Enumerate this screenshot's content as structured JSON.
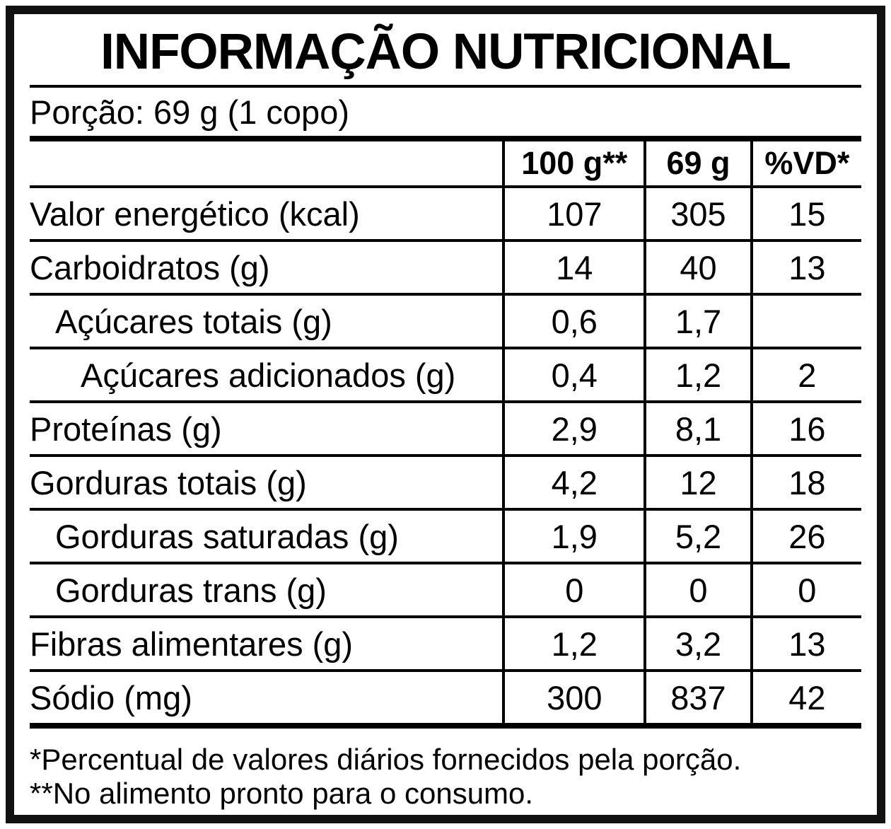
{
  "title": "INFORMAÇÃO NUTRICIONAL",
  "portion": "Porção: 69 g (1 copo)",
  "table": {
    "columns": [
      "",
      "100 g**",
      "69 g",
      "%VD*"
    ],
    "rows": [
      {
        "label": "Valor energético (kcal)",
        "indent": 0,
        "per100g": "107",
        "per_portion": "305",
        "percent_vd": "15"
      },
      {
        "label": "Carboidratos (g)",
        "indent": 0,
        "per100g": "14",
        "per_portion": "40",
        "percent_vd": "13"
      },
      {
        "label": "Açúcares totais (g)",
        "indent": 1,
        "per100g": "0,6",
        "per_portion": "1,7",
        "percent_vd": ""
      },
      {
        "label": "Açúcares adicionados (g)",
        "indent": 2,
        "per100g": "0,4",
        "per_portion": "1,2",
        "percent_vd": "2"
      },
      {
        "label": "Proteínas (g)",
        "indent": 0,
        "per100g": "2,9",
        "per_portion": "8,1",
        "percent_vd": "16"
      },
      {
        "label": "Gorduras totais (g)",
        "indent": 0,
        "per100g": "4,2",
        "per_portion": "12",
        "percent_vd": "18"
      },
      {
        "label": "Gorduras saturadas (g)",
        "indent": 1,
        "per100g": "1,9",
        "per_portion": "5,2",
        "percent_vd": "26"
      },
      {
        "label": "Gorduras trans (g)",
        "indent": 1,
        "per100g": "0",
        "per_portion": "0",
        "percent_vd": "0"
      },
      {
        "label": "Fibras alimentares (g)",
        "indent": 0,
        "per100g": "1,2",
        "per_portion": "3,2",
        "percent_vd": "13"
      },
      {
        "label": "Sódio (mg)",
        "indent": 0,
        "per100g": "300",
        "per_portion": "837",
        "percent_vd": "42"
      }
    ]
  },
  "footnotes": [
    "*Percentual de valores diários fornecidos pela porção.",
    "**No alimento pronto para o consumo."
  ],
  "colors": {
    "ink": "#000000",
    "background": "#ffffff"
  }
}
